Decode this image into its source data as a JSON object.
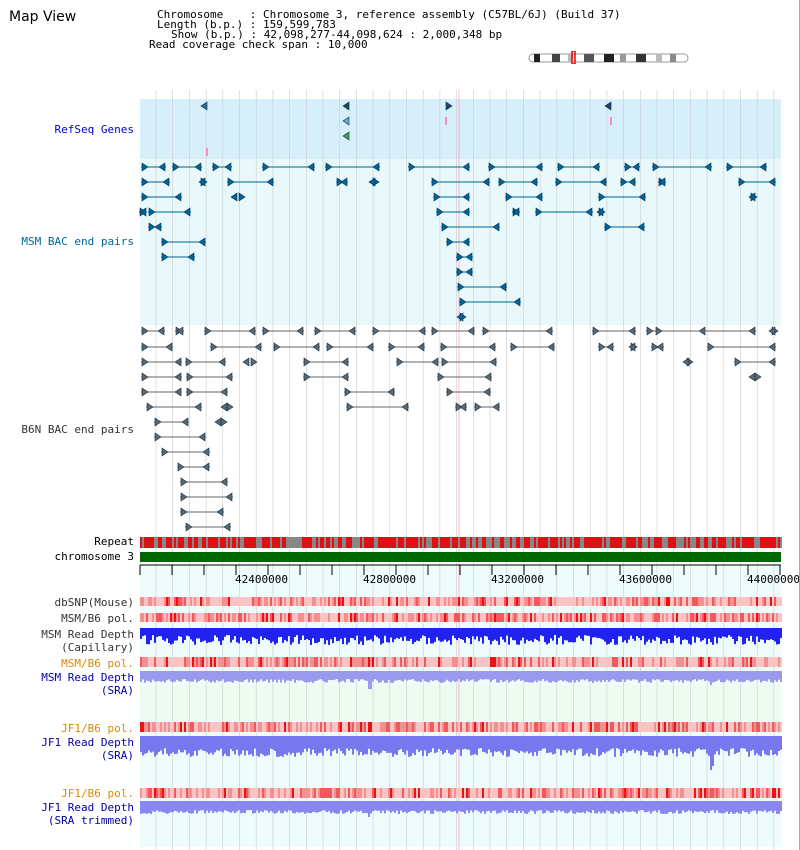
{
  "app": {
    "title": "Map View"
  },
  "header": {
    "chromosome_label": "Chromosome",
    "chromosome_value": "Chromosome 3, reference assembly (C57BL/6J) (Build 37)",
    "length_label": "Length (b.p.)",
    "length_value": "159,599,783",
    "show_label": "Show (b.p.)",
    "show_value": "42,098,277-44,098,624 : 2,000,348 bp",
    "coverage_label": "Read coverage check span",
    "coverage_value": "10,000"
  },
  "tracks": {
    "refseq": {
      "label": "RefSeq Genes",
      "color": "#0000cc"
    },
    "msm_bac": {
      "label": "MSM BAC end pairs",
      "color": "#006699"
    },
    "b6n_bac": {
      "label": "B6N BAC end pairs",
      "color": "#333333"
    },
    "repeat": {
      "label": "Repeat"
    },
    "chromosome": {
      "label": "chromosome 3"
    }
  },
  "axis": {
    "ticks": [
      "42400000",
      "42800000",
      "43200000",
      "43600000",
      "44000000"
    ]
  },
  "readtracks": [
    {
      "key": "dbsnp",
      "lines": [
        "dbSNP(Mouse)"
      ],
      "color": "#333333"
    },
    {
      "key": "msm_b6_pol_1",
      "lines": [
        "MSM/B6 pol."
      ],
      "color": "#333333"
    },
    {
      "key": "msm_depth_cap",
      "lines": [
        "MSM Read Depth",
        "(Capillary)"
      ],
      "color": "#333333"
    },
    {
      "key": "msm_b6_pol_2",
      "lines": [
        "MSM/B6 pol."
      ],
      "color": "#dd8800"
    },
    {
      "key": "msm_depth_sra",
      "lines": [
        "MSM Read Depth",
        "(SRA)"
      ],
      "color": "#0000aa"
    },
    {
      "key": "jf1_b6_pol_1",
      "lines": [
        "JF1/B6 pol."
      ],
      "color": "#dd8800"
    },
    {
      "key": "jf1_depth_sra",
      "lines": [
        "JF1 Read Depth",
        "(SRA)"
      ],
      "color": "#0000aa"
    },
    {
      "key": "jf1_b6_pol_2",
      "lines": [
        "JF1/B6 pol."
      ],
      "color": "#dd8800"
    },
    {
      "key": "jf1_depth_trim",
      "lines": [
        "JF1 Read Depth",
        "(SRA trimmed)"
      ],
      "color": "#0000aa"
    }
  ],
  "colors": {
    "refseq_bg": "#d6effb",
    "msm_bg": "#e8f8fb",
    "lower_bg": "#eefcfb",
    "msm_sra_bg": "#eefbf0",
    "gridline": "#cccccc",
    "highlight": "#ff88aa",
    "repeat_red": "#dd1111",
    "repeat_gray": "#888888",
    "chromosome_green": "#006600",
    "depth_dark": "#2222ee",
    "depth_light": "#7777ee"
  }
}
